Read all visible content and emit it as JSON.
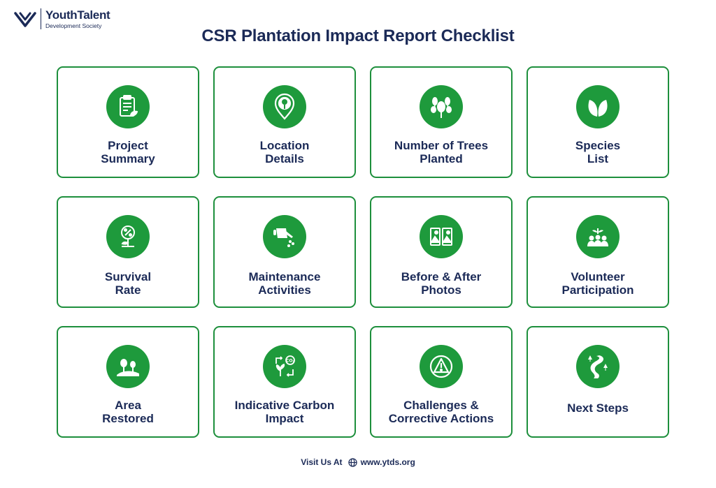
{
  "brand": {
    "name": "YouthTalent",
    "subtitle": "Development Society"
  },
  "title": "CSR Plantation Impact Report Checklist",
  "colors": {
    "accent": "#1e9a3c",
    "text": "#1b2a57",
    "border": "#1d8f3c"
  },
  "cards": [
    {
      "label": "Project\nSummary",
      "icon": "clipboard-leaf-icon"
    },
    {
      "label": "Location\nDetails",
      "icon": "map-pin-tree-icon"
    },
    {
      "label": "Number of Trees\nPlanted",
      "icon": "trees-icon"
    },
    {
      "label": "Species\nList",
      "icon": "leaves-icon"
    },
    {
      "label": "Survival\nRate",
      "icon": "percent-plant-icon"
    },
    {
      "label": "Maintenance\nActivities",
      "icon": "watering-can-icon"
    },
    {
      "label": "Before & After\nPhotos",
      "icon": "photo-compare-icon"
    },
    {
      "label": "Volunteer\nParticipation",
      "icon": "volunteers-icon"
    },
    {
      "label": "Area\nRestored",
      "icon": "landscape-icon"
    },
    {
      "label": "Indicative Carbon\nImpact",
      "icon": "co2-cycle-icon"
    },
    {
      "label": "Challenges &\nCorrective Actions",
      "icon": "warning-icon"
    },
    {
      "label": "Next Steps",
      "icon": "path-icon"
    }
  ],
  "footer": {
    "prefix": "Visit Us At",
    "url": "www.ytds.org"
  }
}
